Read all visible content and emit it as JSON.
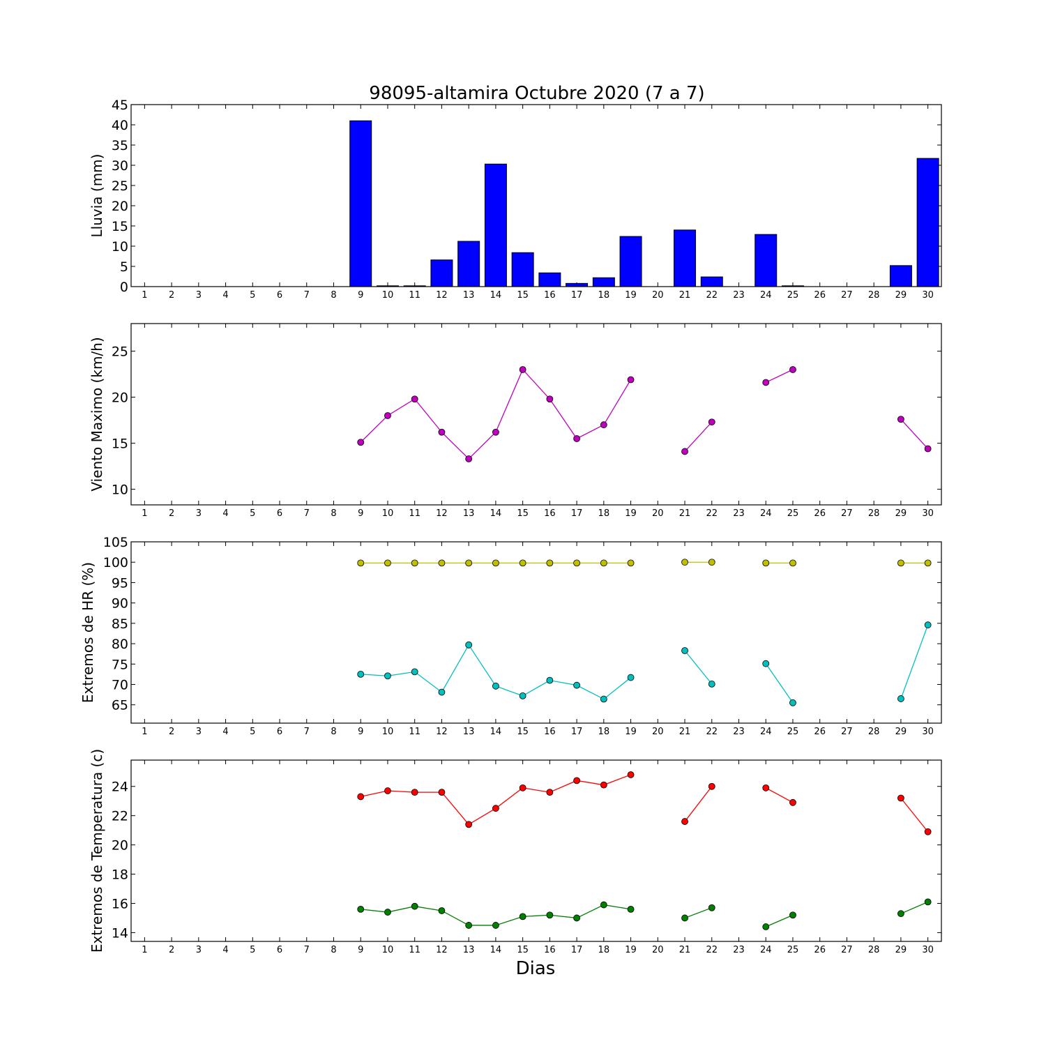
{
  "figure": {
    "title": "98095-altamira Octubre 2020  (7 a 7)",
    "xlabel": "Dias"
  },
  "chart_data": [
    {
      "type": "bar",
      "ylabel": "Lluvia (mm)",
      "ylim": [
        0,
        45
      ],
      "yticks": [
        0,
        5,
        10,
        15,
        20,
        25,
        30,
        35,
        40,
        45
      ],
      "xticks": [
        1,
        2,
        3,
        4,
        5,
        6,
        7,
        8,
        9,
        10,
        11,
        12,
        13,
        14,
        15,
        16,
        17,
        18,
        19,
        20,
        21,
        22,
        23,
        24,
        25,
        26,
        27,
        28,
        29,
        30
      ],
      "bar_color": "#0000ff",
      "x": [
        9,
        10,
        11,
        12,
        13,
        14,
        15,
        16,
        17,
        18,
        19,
        21,
        22,
        24,
        25,
        29,
        30
      ],
      "values": [
        41.0,
        0.2,
        0.2,
        6.6,
        11.2,
        30.3,
        8.4,
        3.4,
        0.8,
        2.2,
        12.4,
        14.0,
        2.4,
        12.9,
        0.2,
        5.2,
        31.7
      ]
    },
    {
      "type": "line",
      "ylabel": "Viento Maximo (km/h)",
      "ylim": [
        8.3,
        28
      ],
      "yticks": [
        10,
        15,
        20,
        25
      ],
      "xticks": [
        1,
        2,
        3,
        4,
        5,
        6,
        7,
        8,
        9,
        10,
        11,
        12,
        13,
        14,
        15,
        16,
        17,
        18,
        19,
        20,
        21,
        22,
        23,
        24,
        25,
        26,
        27,
        28,
        29,
        30
      ],
      "series": [
        {
          "color": "#bf00bf",
          "x": [
            9,
            10,
            11,
            12,
            13,
            14,
            15,
            16,
            17,
            18,
            19,
            20,
            21,
            22,
            23,
            24,
            25,
            26,
            27,
            28,
            29,
            30
          ],
          "values": [
            15.1,
            18.0,
            19.8,
            16.2,
            13.3,
            16.2,
            23.0,
            19.8,
            15.5,
            17.0,
            21.9,
            null,
            14.1,
            17.3,
            null,
            21.6,
            23.0,
            null,
            null,
            null,
            17.6,
            14.4
          ]
        }
      ]
    },
    {
      "type": "line",
      "ylabel": "Extremos de HR (%)",
      "ylim": [
        60.5,
        105
      ],
      "yticks": [
        65,
        70,
        75,
        80,
        85,
        90,
        95,
        100,
        105
      ],
      "xticks": [
        1,
        2,
        3,
        4,
        5,
        6,
        7,
        8,
        9,
        10,
        11,
        12,
        13,
        14,
        15,
        16,
        17,
        18,
        19,
        20,
        21,
        22,
        23,
        24,
        25,
        26,
        27,
        28,
        29,
        30
      ],
      "series": [
        {
          "color": "#bfbf00",
          "x": [
            9,
            10,
            11,
            12,
            13,
            14,
            15,
            16,
            17,
            18,
            19,
            20,
            21,
            22,
            23,
            24,
            25,
            26,
            27,
            28,
            29,
            30
          ],
          "values": [
            99.8,
            99.8,
            99.8,
            99.8,
            99.8,
            99.8,
            99.8,
            99.8,
            99.8,
            99.8,
            99.8,
            null,
            100.0,
            100.0,
            null,
            99.8,
            99.8,
            null,
            null,
            null,
            99.8,
            99.8
          ]
        },
        {
          "color": "#00bfbf",
          "x": [
            9,
            10,
            11,
            12,
            13,
            14,
            15,
            16,
            17,
            18,
            19,
            20,
            21,
            22,
            23,
            24,
            25,
            26,
            27,
            28,
            29,
            30
          ],
          "values": [
            72.5,
            72.1,
            73.1,
            68.1,
            79.7,
            69.6,
            67.2,
            71.0,
            69.8,
            66.4,
            71.7,
            null,
            78.3,
            70.1,
            null,
            75.1,
            65.5,
            null,
            null,
            null,
            66.5,
            84.6
          ]
        }
      ]
    },
    {
      "type": "line",
      "ylabel": "Extremos de Temperatura (c)",
      "ylim": [
        13.4,
        25.8
      ],
      "yticks": [
        14,
        16,
        18,
        20,
        22,
        24
      ],
      "xticks": [
        1,
        2,
        3,
        4,
        5,
        6,
        7,
        8,
        9,
        10,
        11,
        12,
        13,
        14,
        15,
        16,
        17,
        18,
        19,
        20,
        21,
        22,
        23,
        24,
        25,
        26,
        27,
        28,
        29,
        30
      ],
      "series": [
        {
          "color": "#ff0000",
          "x": [
            9,
            10,
            11,
            12,
            13,
            14,
            15,
            16,
            17,
            18,
            19,
            20,
            21,
            22,
            23,
            24,
            25,
            26,
            27,
            28,
            29,
            30
          ],
          "values": [
            23.3,
            23.7,
            23.6,
            23.6,
            21.4,
            22.5,
            23.9,
            23.6,
            24.4,
            24.1,
            24.8,
            null,
            21.6,
            24.0,
            null,
            23.9,
            22.9,
            null,
            null,
            null,
            23.2,
            20.9
          ]
        },
        {
          "color": "#007f00",
          "x": [
            9,
            10,
            11,
            12,
            13,
            14,
            15,
            16,
            17,
            18,
            19,
            20,
            21,
            22,
            23,
            24,
            25,
            26,
            27,
            28,
            29,
            30
          ],
          "values": [
            15.6,
            15.4,
            15.8,
            15.5,
            14.5,
            14.5,
            15.1,
            15.2,
            15.0,
            15.9,
            15.6,
            null,
            15.0,
            15.7,
            null,
            14.4,
            15.2,
            null,
            null,
            null,
            15.3,
            16.1
          ]
        }
      ]
    }
  ]
}
